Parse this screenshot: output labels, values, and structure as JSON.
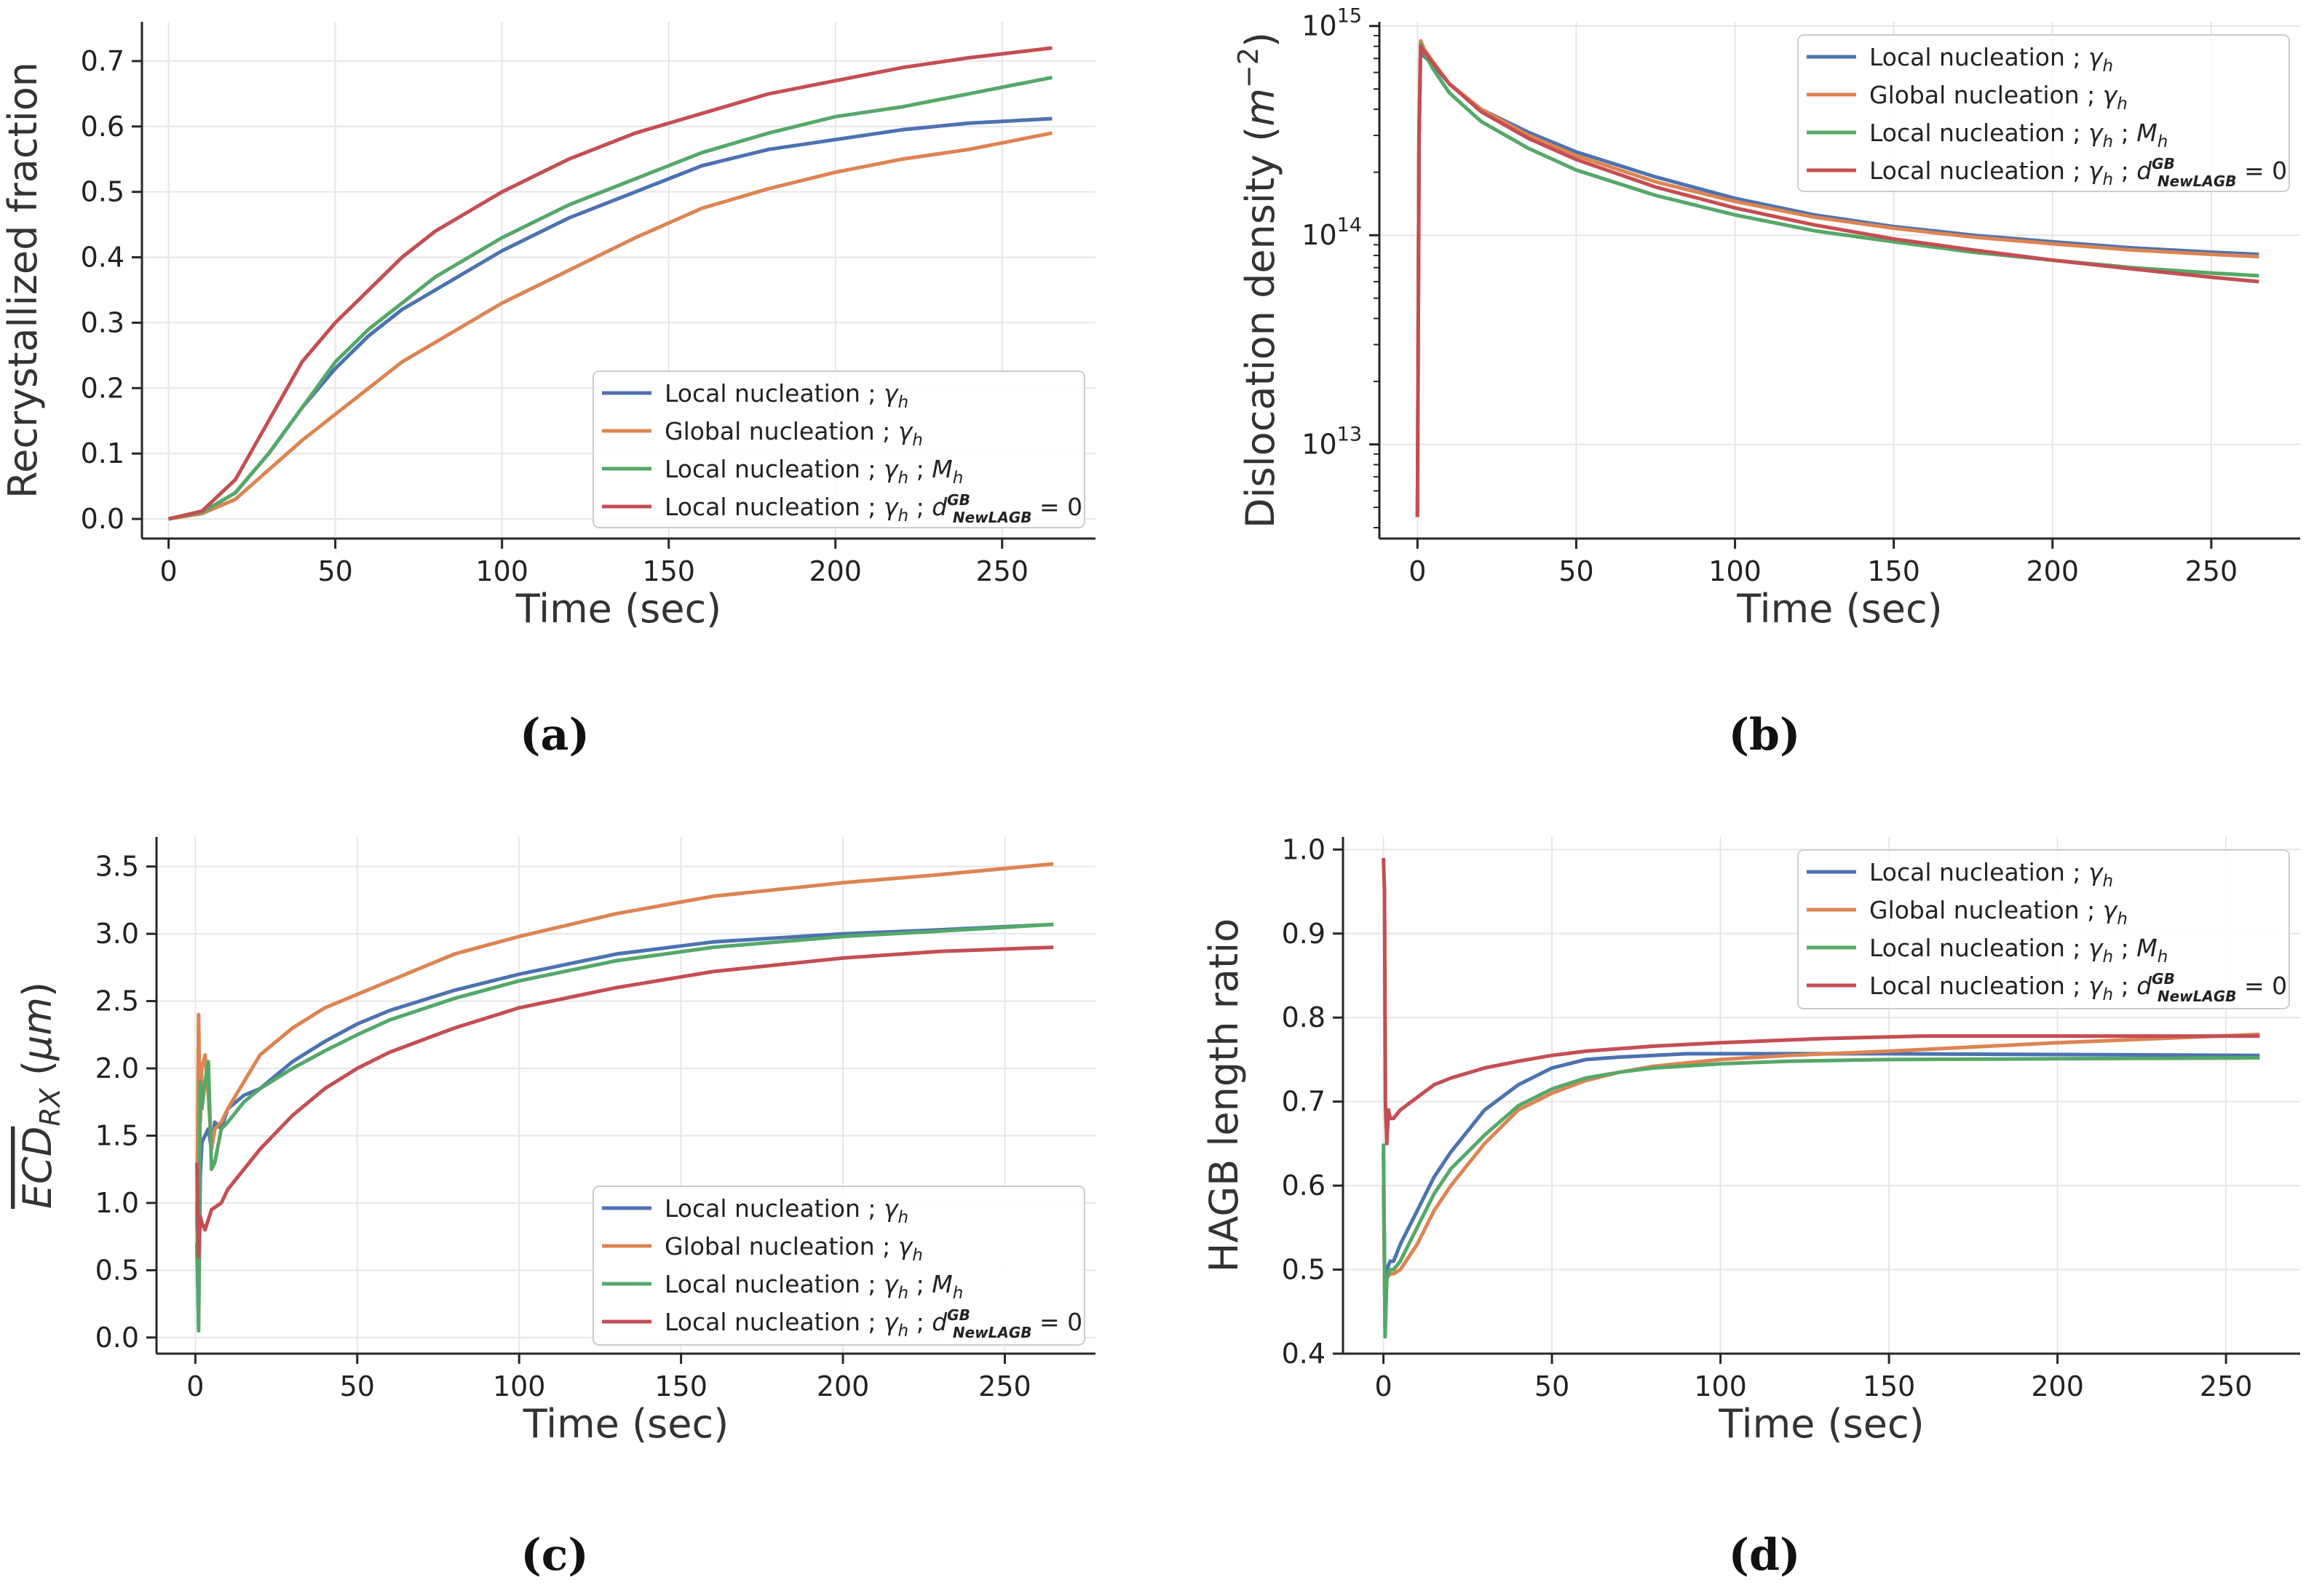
{
  "colors": {
    "blue": "#4c72b0",
    "orange": "#dd8452",
    "green": "#55a868",
    "red": "#c44e52",
    "grid": "#e6e6e6",
    "axis": "#262626"
  },
  "legend_labels": [
    {
      "base": "Local nucleation ; ",
      "math": [
        [
          "γ",
          "h"
        ]
      ]
    },
    {
      "base": "Global nucleation ; ",
      "math": [
        [
          "γ",
          "h"
        ]
      ]
    },
    {
      "base": "Local nucleation ; ",
      "math": [
        [
          "γ",
          "h"
        ],
        [
          " ; "
        ],
        [
          "M",
          "h"
        ]
      ]
    },
    {
      "base": "Local nucleation ; ",
      "math": [
        [
          "γ",
          "h"
        ],
        [
          " ; "
        ],
        [
          "d",
          "NewLAGB",
          "GB"
        ],
        [
          " = 0"
        ]
      ]
    }
  ],
  "captions": [
    "(a)",
    "(b)",
    "(c)",
    "(d)"
  ],
  "chart_data": [
    {
      "id": "a",
      "type": "line",
      "xlabel": "Time (sec)",
      "ylabel": "Recrystallized fraction",
      "xlim": [
        -8,
        278
      ],
      "ylim": [
        -0.03,
        0.76
      ],
      "xticks": [
        0,
        50,
        100,
        150,
        200,
        250
      ],
      "yticks": [
        0.0,
        0.1,
        0.2,
        0.3,
        0.4,
        0.5,
        0.6,
        0.7
      ],
      "ytick_labels": [
        "0.0",
        "0.1",
        "0.2",
        "0.3",
        "0.4",
        "0.5",
        "0.6",
        "0.7"
      ],
      "legend": "lower-right",
      "grid": true,
      "yscale": "linear",
      "x": [
        0,
        10,
        20,
        30,
        40,
        50,
        60,
        70,
        80,
        90,
        100,
        120,
        140,
        160,
        180,
        200,
        220,
        240,
        265
      ],
      "series": [
        {
          "color": "blue",
          "values": [
            0,
            0.01,
            0.04,
            0.1,
            0.17,
            0.23,
            0.28,
            0.32,
            0.35,
            0.38,
            0.41,
            0.46,
            0.5,
            0.54,
            0.565,
            0.58,
            0.595,
            0.605,
            0.612
          ]
        },
        {
          "color": "orange",
          "values": [
            0,
            0.008,
            0.03,
            0.075,
            0.12,
            0.16,
            0.2,
            0.24,
            0.27,
            0.3,
            0.33,
            0.38,
            0.43,
            0.475,
            0.505,
            0.53,
            0.55,
            0.565,
            0.59
          ]
        },
        {
          "color": "green",
          "values": [
            0,
            0.01,
            0.04,
            0.1,
            0.17,
            0.24,
            0.29,
            0.33,
            0.37,
            0.4,
            0.43,
            0.48,
            0.52,
            0.56,
            0.59,
            0.615,
            0.63,
            0.65,
            0.675
          ]
        },
        {
          "color": "red",
          "values": [
            0,
            0.012,
            0.06,
            0.15,
            0.24,
            0.3,
            0.35,
            0.4,
            0.44,
            0.47,
            0.5,
            0.55,
            0.59,
            0.62,
            0.65,
            0.67,
            0.69,
            0.705,
            0.72
          ]
        }
      ]
    },
    {
      "id": "b",
      "type": "line",
      "xlabel": "Time (sec)",
      "ylabel_text": "Dislocation density",
      "ylabel_unit": [
        "m",
        "−2"
      ],
      "xlim": [
        -12,
        278
      ],
      "ylim": [
        12.55,
        15.02
      ],
      "xticks": [
        0,
        50,
        100,
        150,
        200,
        250
      ],
      "yticks": [
        13,
        14,
        15
      ],
      "ytick_labels": [
        [
          "10",
          "13"
        ],
        [
          "10",
          "14"
        ],
        [
          "10",
          "15"
        ]
      ],
      "legend": "upper-right",
      "grid": true,
      "yscale": "log",
      "x": [
        0,
        0.5,
        1,
        2,
        5,
        10,
        20,
        35,
        50,
        75,
        100,
        125,
        150,
        175,
        200,
        225,
        250,
        265
      ],
      "series": [
        {
          "color": "blue",
          "values": [
            4500000000000.0,
            300000000000000.0,
            750000000000000.0,
            720000000000000.0,
            650000000000000.0,
            530000000000000.0,
            400000000000000.0,
            310000000000000.0,
            250000000000000.0,
            190000000000000.0,
            150000000000000.0,
            125000000000000.0,
            110000000000000.0,
            100000000000000.0,
            93000000000000.0,
            87000000000000.0,
            83000000000000.0,
            81000000000000.0
          ]
        },
        {
          "color": "orange",
          "values": [
            4500000000000.0,
            300000000000000.0,
            850000000000000.0,
            780000000000000.0,
            670000000000000.0,
            530000000000000.0,
            400000000000000.0,
            300000000000000.0,
            240000000000000.0,
            180000000000000.0,
            145000000000000.0,
            122000000000000.0,
            108000000000000.0,
            98000000000000.0,
            91000000000000.0,
            85000000000000.0,
            81000000000000.0,
            79000000000000.0
          ]
        },
        {
          "color": "green",
          "values": [
            4500000000000.0,
            300000000000000.0,
            820000000000000.0,
            750000000000000.0,
            620000000000000.0,
            480000000000000.0,
            350000000000000.0,
            260000000000000.0,
            205000000000000.0,
            155000000000000.0,
            125000000000000.0,
            105000000000000.0,
            93000000000000.0,
            83000000000000.0,
            76000000000000.0,
            70000000000000.0,
            66000000000000.0,
            64000000000000.0
          ]
        },
        {
          "color": "red",
          "values": [
            4500000000000.0,
            300000000000000.0,
            800000000000000.0,
            760000000000000.0,
            660000000000000.0,
            530000000000000.0,
            390000000000000.0,
            290000000000000.0,
            230000000000000.0,
            170000000000000.0,
            135000000000000.0,
            112000000000000.0,
            96000000000000.0,
            85000000000000.0,
            76000000000000.0,
            69000000000000.0,
            63000000000000.0,
            60000000000000.0
          ]
        }
      ]
    },
    {
      "id": "c",
      "type": "line",
      "xlabel": "Time (sec)",
      "ylabel_text": "ECD",
      "ylabel_sub": "RX",
      "ylabel_unit": "μm",
      "xlim": [
        -12,
        278
      ],
      "ylim": [
        -0.12,
        3.72
      ],
      "xticks": [
        0,
        50,
        100,
        150,
        200,
        250
      ],
      "yticks": [
        0.0,
        0.5,
        1.0,
        1.5,
        2.0,
        2.5,
        3.0,
        3.5
      ],
      "ytick_labels": [
        "0.0",
        "0.5",
        "1.0",
        "1.5",
        "2.0",
        "2.5",
        "3.0",
        "3.5"
      ],
      "legend": "lower-right",
      "grid": true,
      "yscale": "linear",
      "series": [
        {
          "color": "blue",
          "x": [
            0.5,
            1,
            1.5,
            2,
            3,
            4,
            5,
            6,
            8,
            10,
            15,
            20,
            30,
            40,
            50,
            60,
            80,
            100,
            130,
            160,
            200,
            230,
            265
          ],
          "values": [
            0.7,
            0.1,
            1.2,
            1.45,
            1.5,
            1.55,
            1.4,
            1.6,
            1.55,
            1.7,
            1.8,
            1.85,
            2.05,
            2.2,
            2.33,
            2.43,
            2.58,
            2.7,
            2.85,
            2.94,
            3.0,
            3.03,
            3.07
          ]
        },
        {
          "color": "orange",
          "x": [
            0.5,
            1,
            1.5,
            2,
            3,
            4,
            5,
            6,
            8,
            10,
            15,
            20,
            30,
            40,
            50,
            60,
            80,
            100,
            130,
            160,
            200,
            230,
            265
          ],
          "values": [
            0.8,
            2.4,
            1.6,
            2.0,
            2.1,
            1.8,
            1.4,
            1.55,
            1.6,
            1.7,
            1.9,
            2.1,
            2.3,
            2.45,
            2.55,
            2.65,
            2.85,
            2.98,
            3.15,
            3.28,
            3.38,
            3.44,
            3.52
          ]
        },
        {
          "color": "green",
          "x": [
            0.5,
            1,
            1.5,
            2,
            3,
            4,
            5,
            6,
            8,
            10,
            15,
            20,
            30,
            40,
            50,
            60,
            80,
            100,
            130,
            160,
            200,
            230,
            265
          ],
          "values": [
            1.0,
            0.05,
            1.9,
            1.7,
            1.9,
            2.05,
            1.25,
            1.3,
            1.55,
            1.6,
            1.75,
            1.85,
            2.0,
            2.13,
            2.25,
            2.36,
            2.52,
            2.65,
            2.8,
            2.9,
            2.98,
            3.02,
            3.07
          ]
        },
        {
          "color": "red",
          "x": [
            0.5,
            1,
            1.5,
            2,
            3,
            5,
            8,
            10,
            15,
            20,
            30,
            40,
            50,
            60,
            80,
            100,
            130,
            160,
            200,
            230,
            265
          ],
          "values": [
            1.3,
            0.6,
            0.9,
            0.85,
            0.8,
            0.95,
            1.0,
            1.1,
            1.25,
            1.4,
            1.65,
            1.85,
            2.0,
            2.12,
            2.3,
            2.45,
            2.6,
            2.72,
            2.82,
            2.87,
            2.9
          ]
        }
      ]
    },
    {
      "id": "d",
      "type": "line",
      "xlabel": "Time (sec)",
      "ylabel": "HAGB length ratio",
      "xlim": [
        -12,
        272
      ],
      "ylim": [
        0.4,
        1.015
      ],
      "xticks": [
        0,
        50,
        100,
        150,
        200,
        250
      ],
      "yticks": [
        0.4,
        0.5,
        0.6,
        0.7,
        0.8,
        0.9,
        1.0
      ],
      "ytick_labels": [
        "0.4",
        "0.5",
        "0.6",
        "0.7",
        "0.8",
        "0.9",
        "1.0"
      ],
      "legend": "upper-right",
      "grid": true,
      "yscale": "linear",
      "series": [
        {
          "color": "blue",
          "x": [
            0,
            0.5,
            1,
            2,
            3,
            5,
            10,
            15,
            20,
            30,
            40,
            50,
            60,
            70,
            80,
            90,
            100,
            120,
            150,
            200,
            260
          ],
          "values": [
            0.64,
            0.43,
            0.5,
            0.51,
            0.51,
            0.53,
            0.57,
            0.61,
            0.64,
            0.69,
            0.72,
            0.74,
            0.75,
            0.753,
            0.755,
            0.757,
            0.757,
            0.757,
            0.757,
            0.756,
            0.755
          ]
        },
        {
          "color": "orange",
          "x": [
            0,
            0.5,
            1,
            2,
            3,
            5,
            10,
            15,
            20,
            30,
            40,
            50,
            60,
            70,
            80,
            100,
            120,
            150,
            200,
            260
          ],
          "values": [
            0.6,
            0.43,
            0.49,
            0.495,
            0.495,
            0.5,
            0.53,
            0.57,
            0.6,
            0.65,
            0.69,
            0.71,
            0.725,
            0.735,
            0.742,
            0.75,
            0.755,
            0.76,
            0.77,
            0.78
          ]
        },
        {
          "color": "green",
          "x": [
            0,
            0.5,
            1,
            2,
            3,
            5,
            10,
            15,
            20,
            30,
            40,
            50,
            60,
            70,
            80,
            100,
            120,
            150,
            200,
            260
          ],
          "values": [
            0.65,
            0.42,
            0.49,
            0.5,
            0.5,
            0.51,
            0.55,
            0.59,
            0.62,
            0.66,
            0.695,
            0.715,
            0.728,
            0.735,
            0.74,
            0.745,
            0.748,
            0.75,
            0.751,
            0.752
          ]
        },
        {
          "color": "red",
          "x": [
            0,
            0.3,
            0.6,
            1,
            1.5,
            2,
            3,
            5,
            10,
            15,
            20,
            30,
            40,
            50,
            60,
            80,
            100,
            130,
            160,
            200,
            260
          ],
          "values": [
            0.99,
            0.95,
            0.7,
            0.65,
            0.69,
            0.68,
            0.68,
            0.69,
            0.705,
            0.72,
            0.728,
            0.74,
            0.748,
            0.755,
            0.76,
            0.766,
            0.77,
            0.775,
            0.778,
            0.778,
            0.778
          ]
        }
      ]
    }
  ]
}
